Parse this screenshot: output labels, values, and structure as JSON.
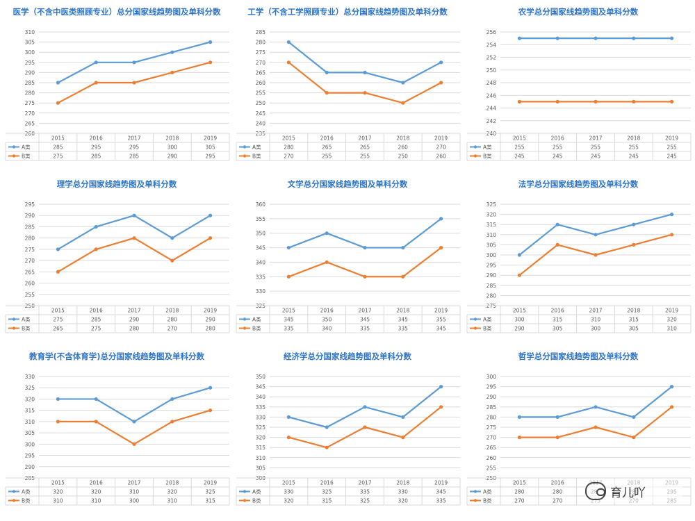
{
  "colors": {
    "series_a": "#5b9bd5",
    "series_b": "#ed7d31",
    "title": "#2e74c8",
    "grid": "#d9d9d9"
  },
  "watermark": {
    "text": "育儿吖",
    "icon": "wechat-icon"
  },
  "chart_data": [
    {
      "type": "line",
      "title": "医学（不含中医类照顾专业）总分国家线趋势图及单科分数",
      "categories": [
        "2015",
        "2016",
        "2017",
        "2018",
        "2019"
      ],
      "ylim": [
        260,
        310
      ],
      "ystep": 5,
      "series": [
        {
          "name": "A类",
          "values": [
            285,
            295,
            295,
            300,
            305
          ]
        },
        {
          "name": "B类",
          "values": [
            275,
            285,
            285,
            290,
            295
          ]
        }
      ],
      "grid": true,
      "legend": "table-bottom"
    },
    {
      "type": "line",
      "title": "工学（不含工学照顾专业）总分国家线趋势图及单科分数",
      "categories": [
        "2015",
        "2016",
        "2017",
        "2018",
        "2019"
      ],
      "ylim": [
        235,
        285
      ],
      "ystep": 5,
      "series": [
        {
          "name": "A类",
          "values": [
            280,
            265,
            265,
            260,
            270
          ]
        },
        {
          "name": "B类",
          "values": [
            270,
            255,
            255,
            250,
            260
          ]
        }
      ],
      "grid": true,
      "legend": "table-bottom"
    },
    {
      "type": "line",
      "title": "农学总分国家线趋势图及单科分数",
      "categories": [
        "2015",
        "2016",
        "2017",
        "2018",
        "2019"
      ],
      "ylim": [
        240,
        256
      ],
      "ystep": 2,
      "series": [
        {
          "name": "A类",
          "values": [
            255,
            255,
            255,
            255,
            255
          ]
        },
        {
          "name": "B类",
          "values": [
            245,
            245,
            245,
            245,
            245
          ]
        }
      ],
      "grid": true,
      "legend": "table-bottom"
    },
    {
      "type": "line",
      "title": "理学总分国家线趋势图及单科分数",
      "categories": [
        "2015",
        "2016",
        "2017",
        "2018",
        "2019"
      ],
      "ylim": [
        250,
        295
      ],
      "ystep": 5,
      "series": [
        {
          "name": "A类",
          "values": [
            275,
            285,
            290,
            280,
            290
          ]
        },
        {
          "name": "B类",
          "values": [
            265,
            275,
            280,
            270,
            280
          ]
        }
      ],
      "grid": true,
      "legend": "table-bottom"
    },
    {
      "type": "line",
      "title": "文学总分国家线趋势图及单科分数",
      "categories": [
        "2015",
        "2016",
        "2017",
        "2018",
        "2019"
      ],
      "ylim": [
        325,
        360
      ],
      "ystep": 5,
      "series": [
        {
          "name": "A类",
          "values": [
            345,
            350,
            345,
            345,
            355
          ]
        },
        {
          "name": "B类",
          "values": [
            335,
            340,
            335,
            335,
            345
          ]
        }
      ],
      "grid": true,
      "legend": "table-bottom"
    },
    {
      "type": "line",
      "title": "法学总分国家线趋势图及单科分数",
      "categories": [
        "2015",
        "2016",
        "2017",
        "2018",
        "2019"
      ],
      "ylim": [
        275,
        325
      ],
      "ystep": 5,
      "series": [
        {
          "name": "A类",
          "values": [
            300,
            315,
            310,
            315,
            320
          ]
        },
        {
          "name": "B类",
          "values": [
            290,
            305,
            300,
            305,
            310
          ]
        }
      ],
      "grid": true,
      "legend": "table-bottom"
    },
    {
      "type": "line",
      "title": "教育学(不含体育学)总分国家线趋势图及单科分数",
      "categories": [
        "2015",
        "2016",
        "2017",
        "2018",
        "2019"
      ],
      "ylim": [
        285,
        330
      ],
      "ystep": 5,
      "series": [
        {
          "name": "A类",
          "values": [
            320,
            320,
            310,
            320,
            325
          ]
        },
        {
          "name": "B类",
          "values": [
            310,
            310,
            300,
            310,
            315
          ]
        }
      ],
      "grid": true,
      "legend": "table-bottom"
    },
    {
      "type": "line",
      "title": "经济学总分国家线趋势图及单科分数",
      "categories": [
        "2015",
        "2016",
        "2017",
        "2018",
        "2019"
      ],
      "ylim": [
        300,
        350
      ],
      "ystep": 5,
      "series": [
        {
          "name": "A类",
          "values": [
            330,
            325,
            335,
            330,
            345
          ]
        },
        {
          "name": "B类",
          "values": [
            320,
            315,
            325,
            320,
            335
          ]
        }
      ],
      "grid": true,
      "legend": "table-bottom"
    },
    {
      "type": "line",
      "title": "哲学总分国家线趋势图及单科分数",
      "categories": [
        "2015",
        "2016",
        "2017",
        "2018",
        "2019"
      ],
      "ylim": [
        250,
        300
      ],
      "ystep": 5,
      "series": [
        {
          "name": "A类",
          "values": [
            280,
            280,
            285,
            280,
            295
          ]
        },
        {
          "name": "B类",
          "values": [
            270,
            270,
            275,
            270,
            285
          ]
        }
      ],
      "grid": true,
      "legend": "table-bottom"
    }
  ]
}
